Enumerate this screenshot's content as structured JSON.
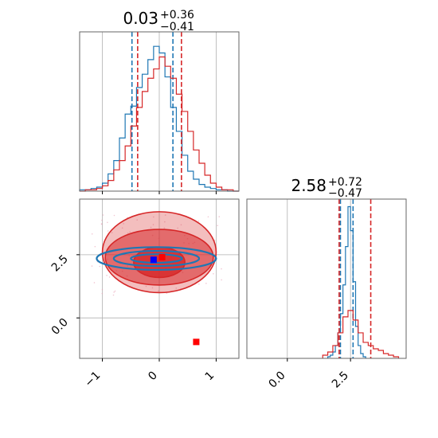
{
  "colors": {
    "series_a": "#1f77b4",
    "series_b": "#d62728",
    "marker_blue": "#0000ff",
    "marker_red": "#ff0000",
    "grid": "#b0b0b0",
    "axis": "#666666"
  },
  "chart_data": [
    {
      "type": "histogram",
      "panel": "top-left",
      "title": "0.03",
      "title_sup": "+0.36",
      "title_sub": "−0.41",
      "xlim": [
        -1.4,
        1.4
      ],
      "x_ticks": [
        -1,
        0,
        1
      ],
      "x_tick_labels_shown": false,
      "grid": true,
      "series": [
        {
          "color": "#1f77b4",
          "quantiles": [
            -0.48,
            0.24
          ],
          "x": [
            -1.35,
            -1.25,
            -1.15,
            -1.05,
            -0.95,
            -0.85,
            -0.75,
            -0.65,
            -0.55,
            -0.45,
            -0.35,
            -0.25,
            -0.15,
            -0.05,
            0.05,
            0.15,
            0.25,
            0.35,
            0.45,
            0.55,
            0.65,
            0.75,
            0.85,
            0.95,
            1.05,
            1.15,
            1.25,
            1.35
          ],
          "values": [
            1,
            1,
            2,
            3,
            6,
            13,
            23,
            40,
            58,
            64,
            78,
            88,
            99,
            109,
            104,
            86,
            63,
            45,
            27,
            15,
            9,
            5,
            3,
            2,
            1,
            1,
            0,
            0
          ]
        },
        {
          "color": "#d62728",
          "quantiles": [
            -0.38,
            0.39
          ],
          "x": [
            -1.35,
            -1.25,
            -1.15,
            -1.05,
            -0.95,
            -0.85,
            -0.75,
            -0.65,
            -0.55,
            -0.45,
            -0.35,
            -0.25,
            -0.15,
            -0.05,
            0.05,
            0.15,
            0.25,
            0.35,
            0.45,
            0.55,
            0.65,
            0.75,
            0.85,
            0.95,
            1.05,
            1.15,
            1.25,
            1.35
          ],
          "values": [
            0,
            1,
            1,
            2,
            4,
            8,
            16,
            23,
            34,
            49,
            63,
            75,
            85,
            92,
            101,
            94,
            85,
            73,
            60,
            45,
            31,
            21,
            12,
            6,
            3,
            1,
            1,
            0
          ]
        }
      ]
    },
    {
      "type": "contour",
      "panel": "bottom-left",
      "xlim": [
        -1.4,
        1.4
      ],
      "ylim": [
        -1.6,
        4.7
      ],
      "x_ticks": [
        -1,
        0,
        1
      ],
      "x_tick_labels": [
        "−1",
        "0",
        "1"
      ],
      "y_ticks": [
        0.0,
        2.5
      ],
      "y_tick_labels": [
        "0.0",
        "2.5"
      ],
      "grid": true,
      "contours": [
        {
          "color": "#d62728",
          "filled": true,
          "levels": [
            {
              "cx": 0.0,
              "cy": 2.6,
              "rx": 1.0,
              "ry": 1.6
            },
            {
              "cx": 0.0,
              "cy": 2.4,
              "rx": 0.95,
              "ry": 1.1
            },
            {
              "cx": 0.0,
              "cy": 2.2,
              "rx": 0.45,
              "ry": 0.6
            }
          ]
        },
        {
          "color": "#1f77b4",
          "filled": false,
          "levels": [
            {
              "cx": -0.05,
              "cy": 2.35,
              "rx": 1.05,
              "ry": 0.45
            },
            {
              "cx": -0.05,
              "cy": 2.35,
              "rx": 0.75,
              "ry": 0.3
            },
            {
              "cx": -0.05,
              "cy": 2.35,
              "rx": 0.45,
              "ry": 0.17
            }
          ]
        }
      ],
      "markers": [
        {
          "x": -0.1,
          "y": 2.3,
          "color": "#0000ff"
        },
        {
          "x": 0.05,
          "y": 2.4,
          "color": "#ff0000"
        },
        {
          "x": 0.65,
          "y": -0.95,
          "color": "#ff0000"
        }
      ]
    },
    {
      "type": "histogram",
      "panel": "bottom-right",
      "title": "2.58",
      "title_sup": "+0.72",
      "title_sub": "−0.47",
      "xlim": [
        -1.6,
        4.7
      ],
      "x_ticks": [
        0.0,
        2.5
      ],
      "x_tick_labels": [
        "0.0",
        "2.5"
      ],
      "grid": true,
      "series": [
        {
          "color": "#1f77b4",
          "quantiles": [
            2.1,
            2.6
          ],
          "x": [
            1.65,
            1.75,
            1.85,
            1.95,
            2.05,
            2.15,
            2.25,
            2.35,
            2.45,
            2.55,
            2.65,
            2.75,
            2.85,
            2.95,
            3.05
          ],
          "values": [
            1,
            2,
            4,
            8,
            16,
            28,
            46,
            70,
            95,
            80,
            48,
            20,
            8,
            3,
            1
          ]
        },
        {
          "color": "#d62728",
          "quantiles": [
            2.05,
            3.3
          ],
          "x": [
            1.5,
            1.7,
            1.9,
            2.1,
            2.3,
            2.5,
            2.7,
            2.9,
            3.1,
            3.3,
            3.5,
            3.7,
            3.9,
            4.1,
            4.3
          ],
          "values": [
            2,
            4,
            8,
            16,
            26,
            30,
            24,
            16,
            10,
            8,
            6,
            5,
            3,
            2,
            1
          ]
        }
      ]
    }
  ]
}
